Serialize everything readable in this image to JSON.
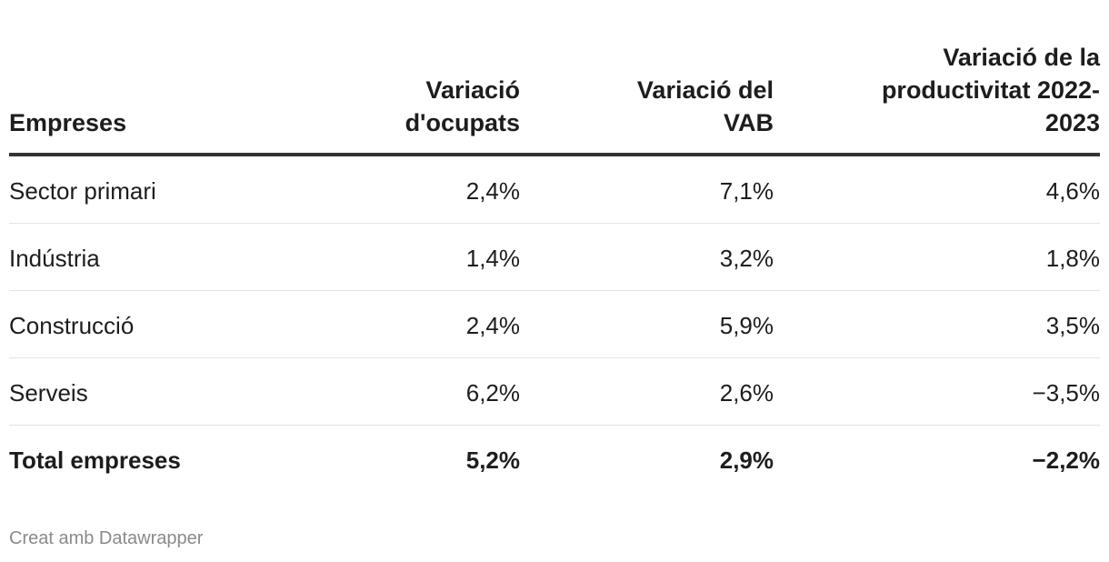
{
  "chart_data": {
    "type": "table",
    "columns": [
      "Empreses",
      "Variació d'ocupats",
      "Variació del VAB",
      "Variació de la productivitat 2022-2023"
    ],
    "rows": [
      {
        "label": "Sector primari",
        "values": [
          "2,4%",
          "7,1%",
          "4,6%"
        ]
      },
      {
        "label": "Indústria",
        "values": [
          "1,4%",
          "3,2%",
          "1,8%"
        ]
      },
      {
        "label": "Construcció",
        "values": [
          "2,4%",
          "5,9%",
          "3,5%"
        ]
      },
      {
        "label": "Serveis",
        "values": [
          "6,2%",
          "2,6%",
          "−3,5%"
        ]
      }
    ],
    "total": {
      "label": "Total empreses",
      "values": [
        "5,2%",
        "2,9%",
        "−2,2%"
      ]
    }
  },
  "header": {
    "col0": "Empreses",
    "col1_line1": "Variació",
    "col1_line2": "d'ocupats",
    "col2_line1": "Variació del",
    "col2_line2": "VAB",
    "col3_line1": "Variació de la",
    "col3_line2": "productivitat 2022-",
    "col3_line3": "2023"
  },
  "footer": {
    "credit": "Creat amb Datawrapper"
  },
  "colors": {
    "text": "#1d1d1d",
    "rule": "#333333",
    "separator": "#e3e3e3",
    "footer": "#8a8a8a"
  }
}
